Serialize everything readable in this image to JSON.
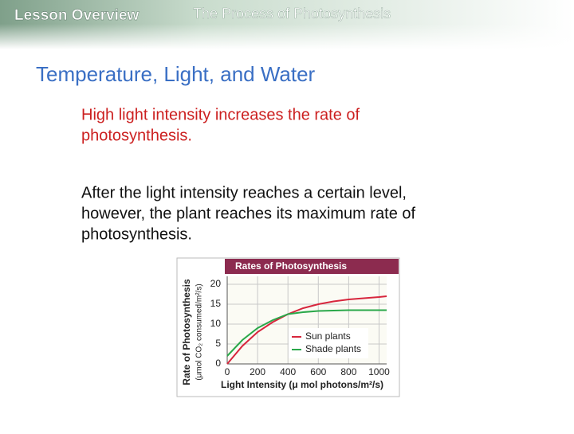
{
  "header": {
    "section": "Lesson Overview",
    "title": "The Process of Photosynthesis"
  },
  "heading": "Temperature, Light, and Water",
  "paragraphs": [
    {
      "lines": [
        "High light intensity increases the rate of",
        "photosynthesis."
      ]
    },
    {
      "lines": [
        "After the light intensity reaches a certain level,",
        "however, the plant reaches its maximum rate of",
        "photosynthesis."
      ]
    }
  ],
  "chart_data": {
    "type": "line",
    "title": "Rates of Photosynthesis",
    "ylabel": [
      "Rate of Photosynthesis",
      "(μmol CO₂ consumed/m²/s)"
    ],
    "xlabel": "Light Intensity (μ mol photons/m²/s)",
    "x": [
      0,
      100,
      200,
      300,
      400,
      500,
      600,
      700,
      800,
      900,
      1000,
      1050
    ],
    "series": [
      {
        "name": "Sun plants",
        "color": "#d7263d",
        "values": [
          0,
          4.5,
          8,
          10.5,
          12.5,
          14,
          15,
          15.7,
          16.2,
          16.5,
          16.8,
          17
        ]
      },
      {
        "name": "Shade plants",
        "color": "#2aa84a",
        "values": [
          2,
          6,
          9,
          11,
          12.5,
          13,
          13.3,
          13.4,
          13.5,
          13.5,
          13.5,
          13.5
        ]
      }
    ],
    "xlim": [
      0,
      1050
    ],
    "ylim": [
      0,
      22
    ],
    "xticks": [
      0,
      200,
      400,
      600,
      800,
      1000
    ],
    "yticks": [
      0,
      5,
      10,
      15,
      20
    ],
    "grid": true,
    "legend": "lower-right"
  }
}
